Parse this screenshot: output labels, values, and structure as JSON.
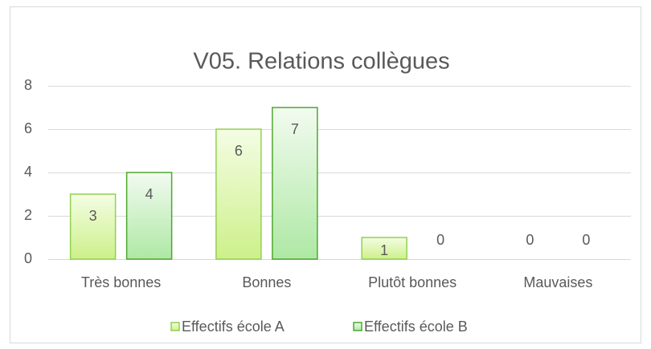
{
  "chart_data": {
    "type": "bar",
    "title": "V05. Relations collègues",
    "categories": [
      "Très bonnes",
      "Bonnes",
      "Plutôt bonnes",
      "Mauvaises"
    ],
    "series": [
      {
        "name": "Effectifs école A",
        "color": "#92d050",
        "values": [
          3,
          6,
          1,
          0
        ]
      },
      {
        "name": "Effectifs école B",
        "color": "#4ea72e",
        "values": [
          4,
          7,
          0,
          0
        ]
      }
    ],
    "ylim": [
      0,
      8
    ],
    "yticks": [
      0,
      2,
      4,
      6,
      8
    ],
    "grid": true,
    "legend": "bottom"
  }
}
